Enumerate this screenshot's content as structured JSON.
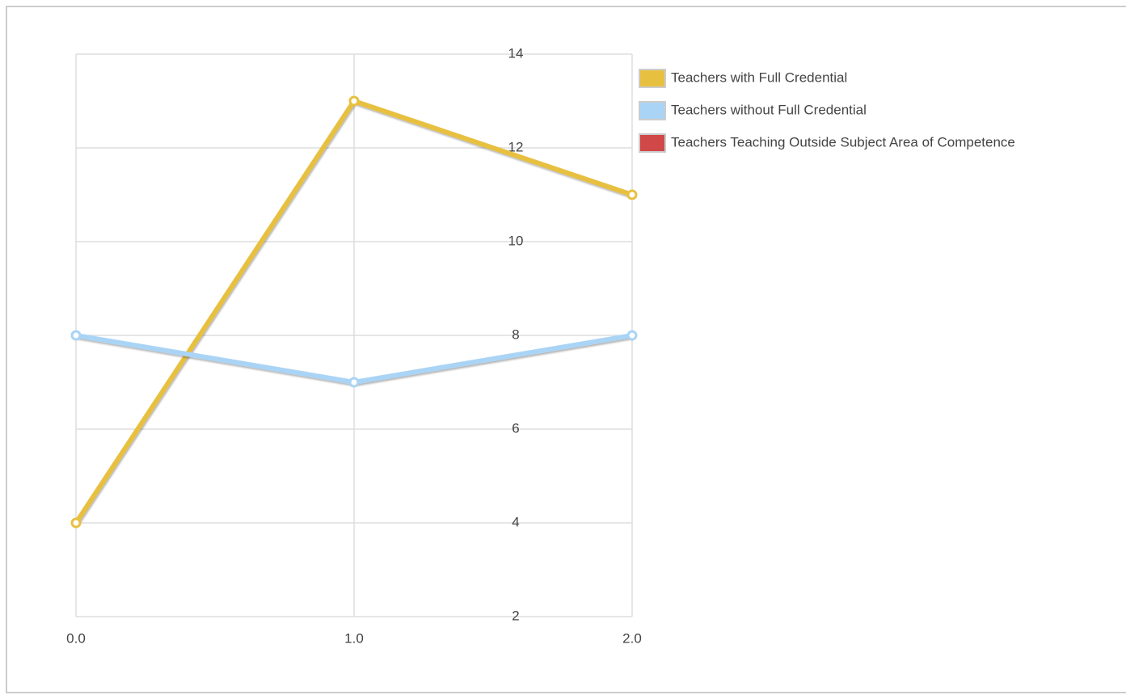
{
  "chart_data": {
    "type": "line",
    "x": [
      0,
      1,
      2
    ],
    "xlim": [
      0,
      2
    ],
    "xticks": [
      {
        "value": 0,
        "label": "0.0"
      },
      {
        "value": 1,
        "label": "1.0"
      },
      {
        "value": 2,
        "label": "2.0"
      }
    ],
    "ylim": [
      2,
      14
    ],
    "yticks": [
      2,
      4,
      6,
      8,
      10,
      12,
      14
    ],
    "grid": true,
    "legend": "right",
    "series": [
      {
        "name": "Teachers with Full Credential",
        "color": "#e8c040",
        "values": [
          4,
          13,
          11
        ]
      },
      {
        "name": "Teachers without Full Credential",
        "color": "#aad4f5",
        "values": [
          8,
          7,
          8
        ]
      },
      {
        "name": "Teachers Teaching Outside Subject Area of Competence",
        "color": "#d04848",
        "values": [
          null,
          null,
          null
        ]
      }
    ]
  }
}
